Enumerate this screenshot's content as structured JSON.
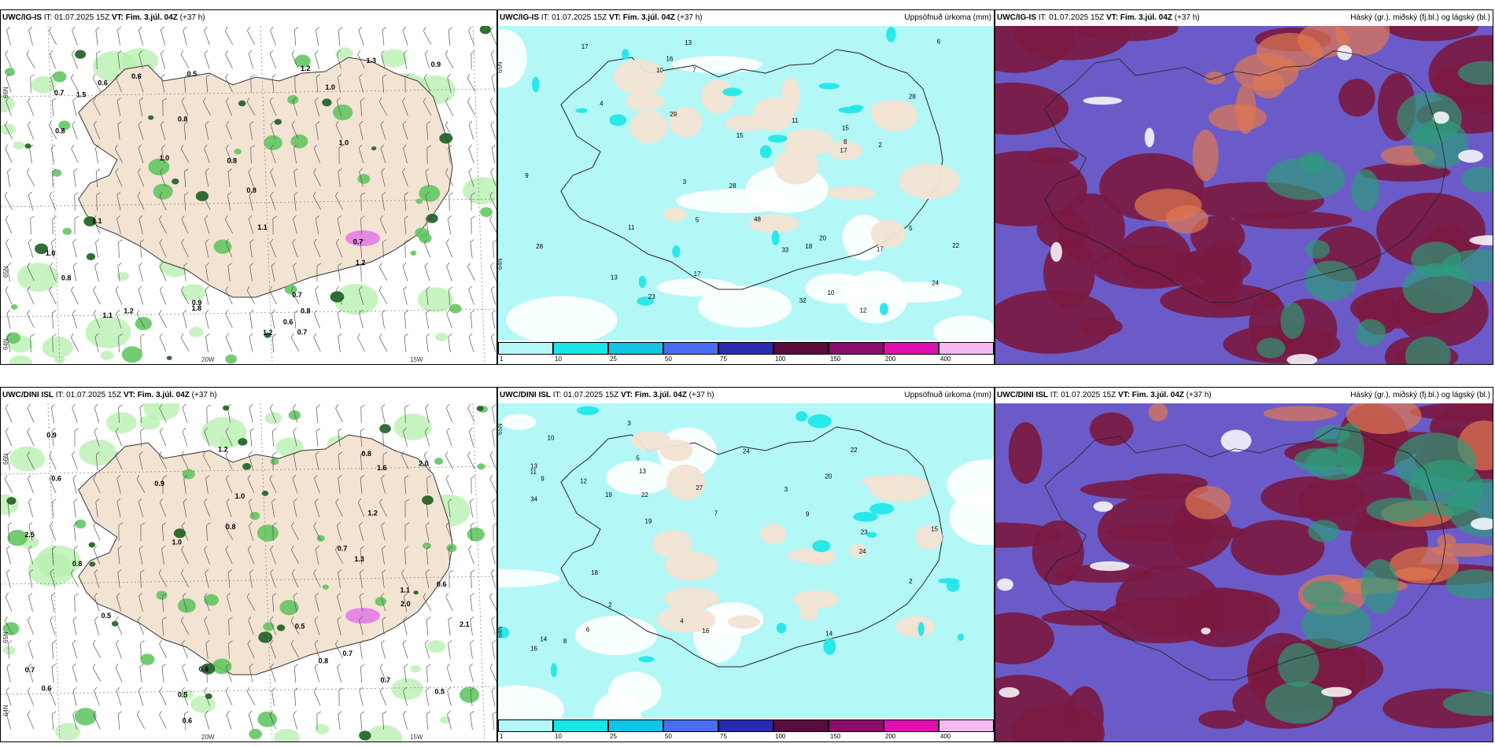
{
  "rows": [
    {
      "model": "UWC/IG-IS",
      "panels": [
        {
          "type": "wind",
          "model": "UWC/IG-IS",
          "it_label": "IT:",
          "it": "01.07.2025 15Z",
          "vt_label": "VT:",
          "vt": "Fim. 3.júl. 04Z",
          "lead": "(+37 h)",
          "right_title": "",
          "lat_labels": [
            "66N",
            "65N",
            "64N"
          ],
          "lon_labels": [
            "20W",
            "15W"
          ],
          "values": [
            "1.2",
            "1.0",
            "0.8",
            "0.7",
            "1.1",
            "0.8",
            "0.9",
            "0.8",
            "1.0",
            "0.6",
            "0.7",
            "0.8",
            "1.2",
            "1.1",
            "1.0",
            "0.7",
            "0.6",
            "0.9",
            "1.3",
            "0.5",
            "1.1",
            "1.8",
            "1.5",
            "0.8",
            "1.2",
            "0.7",
            "1.0",
            "1.2",
            "0.6",
            "0.8"
          ]
        },
        {
          "type": "precip",
          "model": "UWC/IG-IS",
          "it_label": "IT:",
          "it": "01.07.2025 15Z",
          "vt_label": "VT:",
          "vt": "Fim. 3.júl. 04Z",
          "lead": "(+37 h)",
          "right_title": "Uppsöfnuð úrkoma (mm)",
          "lat_labels": [
            "65N",
            "64N"
          ],
          "values": [
            "7",
            "3",
            "5",
            "15",
            "28",
            "13",
            "10",
            "22",
            "29",
            "10",
            "17",
            "18",
            "15",
            "8",
            "33",
            "13",
            "11",
            "48",
            "17",
            "16",
            "17",
            "28",
            "23",
            "17",
            "20",
            "28",
            "32",
            "24",
            "4",
            "5",
            "6",
            "2",
            "12",
            "9",
            "11"
          ]
        },
        {
          "type": "cloud",
          "model": "UWC/IG-IS",
          "it_label": "IT:",
          "it": "01.07.2025 15Z",
          "vt_label": "VT:",
          "vt": "Fim. 3.júl. 04Z",
          "lead": "(+37 h)",
          "right_title": "Háský (gr.), miðský (fj.bl.) og lágský (bl.)"
        }
      ]
    },
    {
      "model": "UWC/DINI ISL",
      "panels": [
        {
          "type": "wind",
          "model": "UWC/DINI ISL",
          "it_label": "IT:",
          "it": "01.07.2025 15Z",
          "vt_label": "VT:",
          "vt": "Fim. 3.júl. 04Z",
          "lead": "(+37 h)",
          "right_title": "",
          "lat_labels": [
            "66N",
            "65N",
            "64N"
          ],
          "lon_labels": [
            "20W",
            "15W"
          ],
          "values": [
            "0.6",
            "0.6",
            "0.8",
            "0.9",
            "1.0",
            "0.5",
            "2.5",
            "1.2",
            "1.1",
            "0.7",
            "0.5",
            "0.8",
            "0.9",
            "1.0",
            "0.7",
            "0.6",
            "0.6",
            "2.0",
            "0.5",
            "1.3",
            "1.2",
            "0.7",
            "0.8",
            "2.1",
            "0.6",
            "0.5",
            "2.0",
            "0.8",
            "1.6",
            "0.7"
          ]
        },
        {
          "type": "precip",
          "model": "UWC/DINI ISL",
          "it_label": "IT:",
          "it": "01.07.2025 15Z",
          "vt_label": "VT:",
          "vt": "Fim. 3.júl. 04Z",
          "lead": "(+37 h)",
          "right_title": "Uppsöfnuð úrkoma (mm)",
          "lat_labels": [
            "65N",
            "64N"
          ],
          "values": [
            "3",
            "2",
            "9",
            "13",
            "16",
            "10",
            "22",
            "23",
            "24",
            "19",
            "14",
            "16",
            "22",
            "12",
            "27",
            "13",
            "24",
            "34",
            "15",
            "14",
            "20",
            "19",
            "18",
            "9",
            "5",
            "6",
            "3",
            "7",
            "4",
            "2",
            "11",
            "8"
          ]
        },
        {
          "type": "cloud",
          "model": "UWC/DINI ISL",
          "it_label": "IT:",
          "it": "01.07.2025 15Z",
          "vt_label": "VT:",
          "vt": "Fim. 3.júl. 04Z",
          "lead": "(+37 h)",
          "right_title": "Háský (gr.), miðský (fj.bl.) og lágský (bl.)"
        }
      ]
    }
  ],
  "legend": {
    "ticks": [
      "1",
      "10",
      "25",
      "50",
      "75",
      "100",
      "150",
      "200",
      "400"
    ],
    "colors": [
      "#b3f7f7",
      "#1ae5e8",
      "#12c4e6",
      "#4a6cf0",
      "#2a2bb0",
      "#5b0b3d",
      "#8a0e6a",
      "#e010b0",
      "#f5b8f2"
    ]
  },
  "colors": {
    "land": "#f3e3d3",
    "sea_wind": "#ffffff",
    "precip_light": "#b3f7f7",
    "precip_mid": "#1ae5e8",
    "wind_green_light": "#b9f0b0",
    "wind_green_mid": "#5bc35a",
    "wind_green_dark": "#1b5e20",
    "wind_pink": "#e070e8",
    "cloud_purple": "#6b5bc8",
    "cloud_maroon": "#7a1840",
    "cloud_orange": "#e07850",
    "cloud_teal": "#2aa078"
  }
}
